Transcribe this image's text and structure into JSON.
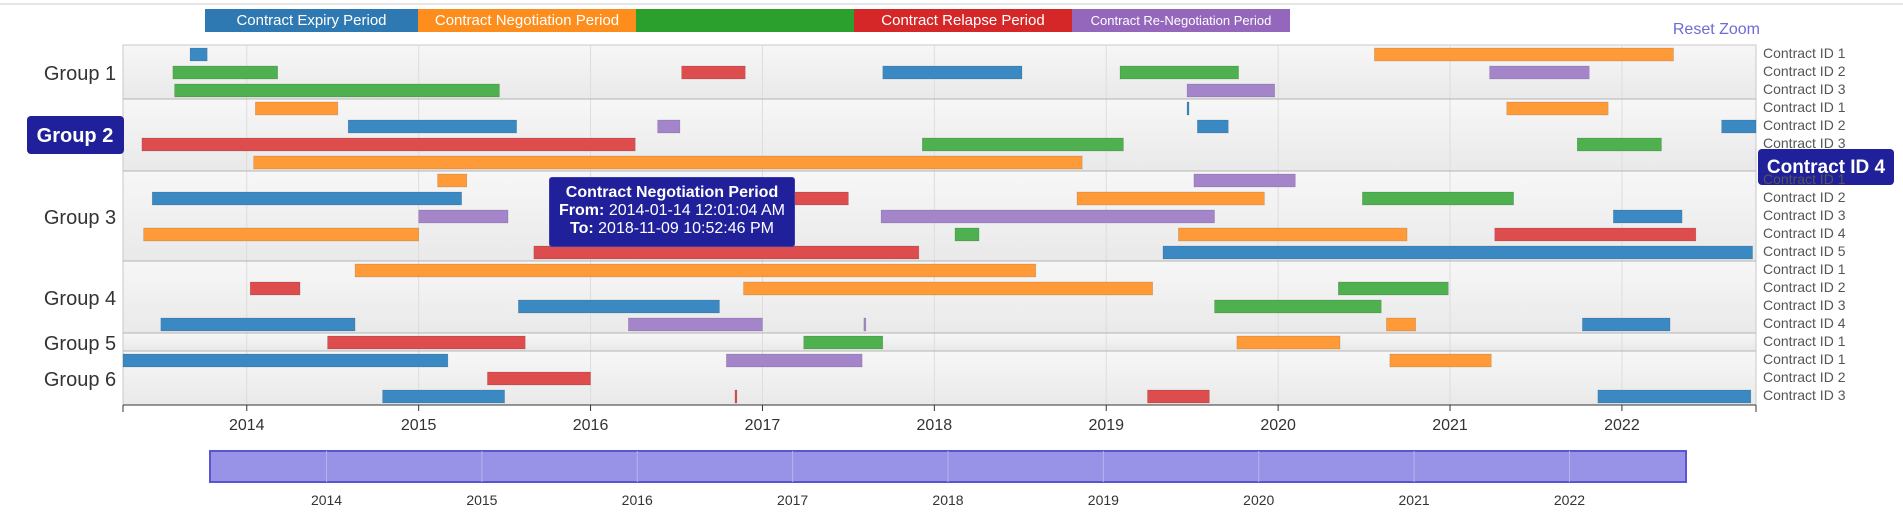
{
  "legend": [
    {
      "label": "Contract Expiry Period",
      "color": "#2f79b3"
    },
    {
      "label": "Contract Negotiation Period",
      "color": "#fd8d1c"
    },
    {
      "label": "",
      "color": "#2ca02c"
    },
    {
      "label": "Contract Relapse Period",
      "color": "#d62728"
    },
    {
      "label": "Contract Re-Negotiation Period",
      "color": "#9467bd"
    }
  ],
  "reset_zoom": "Reset Zoom",
  "tooltip": {
    "title": "Contract Negotiation Period",
    "from_label": "From:",
    "from": "2014-01-14 12:01:04 AM",
    "to_label": "To:",
    "to": "2018-11-09 10:52:46 PM"
  },
  "chart_data": {
    "type": "timeline",
    "x_range": [
      2013.28,
      2022.78
    ],
    "x_ticks": [
      "2014",
      "2015",
      "2016",
      "2017",
      "2018",
      "2019",
      "2020",
      "2021",
      "2022"
    ],
    "brush_range": [
      2013.25,
      2022.75
    ],
    "brush_ticks": [
      "2014",
      "2015",
      "2016",
      "2017",
      "2018",
      "2019",
      "2020",
      "2021",
      "2022"
    ],
    "highlighted_group": "Group 2",
    "highlighted_row": "Contract ID 4",
    "groups": [
      {
        "name": "Group 1",
        "rows": [
          {
            "label": "Contract ID 1",
            "bars": [
              [
                2013.67,
                2013.77,
                "expiry"
              ],
              [
                2020.56,
                2022.3,
                "negotiation"
              ]
            ]
          },
          {
            "label": "Contract ID 2",
            "bars": [
              [
                2013.57,
                2014.18,
                "green"
              ],
              [
                2016.53,
                2016.9,
                "relapse"
              ],
              [
                2017.7,
                2018.51,
                "expiry"
              ],
              [
                2019.08,
                2019.77,
                "green"
              ],
              [
                2021.23,
                2021.81,
                "renegotiation"
              ]
            ]
          },
          {
            "label": "Contract ID 3",
            "bars": [
              [
                2013.58,
                2015.47,
                "green"
              ],
              [
                2019.47,
                2019.98,
                "renegotiation"
              ]
            ]
          }
        ]
      },
      {
        "name": "Group 2",
        "rows": [
          {
            "label": "Contract ID 1",
            "bars": [
              [
                2014.05,
                2014.53,
                "negotiation"
              ],
              [
                2019.47,
                2019.48,
                "expiry"
              ],
              [
                2021.33,
                2021.92,
                "negotiation"
              ]
            ]
          },
          {
            "label": "Contract ID 2",
            "bars": [
              [
                2014.59,
                2015.57,
                "expiry"
              ],
              [
                2016.39,
                2016.52,
                "renegotiation"
              ],
              [
                2019.53,
                2019.71,
                "expiry"
              ],
              [
                2022.58,
                2022.78,
                "expiry"
              ]
            ]
          },
          {
            "label": "Contract ID 3",
            "bars": [
              [
                2013.39,
                2016.26,
                "relapse"
              ],
              [
                2017.93,
                2019.1,
                "green"
              ],
              [
                2021.74,
                2022.23,
                "green"
              ]
            ]
          },
          {
            "label": "Contract ID 4",
            "bars": [
              [
                2014.04,
                2018.86,
                "negotiation"
              ]
            ]
          }
        ]
      },
      {
        "name": "Group 3",
        "rows": [
          {
            "label": "Contract ID 1",
            "bars": [
              [
                2015.11,
                2015.28,
                "negotiation"
              ],
              [
                2019.51,
                2020.1,
                "renegotiation"
              ]
            ]
          },
          {
            "label": "Contract ID 2",
            "bars": [
              [
                2013.45,
                2015.25,
                "expiry"
              ],
              [
                2017.15,
                2017.5,
                "relapse"
              ],
              [
                2018.83,
                2019.92,
                "negotiation"
              ],
              [
                2020.49,
                2021.37,
                "green"
              ]
            ]
          },
          {
            "label": "Contract ID 3",
            "bars": [
              [
                2015.0,
                2015.52,
                "renegotiation"
              ],
              [
                2017.69,
                2019.63,
                "renegotiation"
              ],
              [
                2021.95,
                2022.35,
                "expiry"
              ]
            ]
          },
          {
            "label": "Contract ID 4",
            "bars": [
              [
                2013.4,
                2015.0,
                "negotiation"
              ],
              [
                2018.12,
                2018.26,
                "green"
              ],
              [
                2019.42,
                2020.75,
                "negotiation"
              ],
              [
                2021.26,
                2022.43,
                "relapse"
              ]
            ]
          },
          {
            "label": "Contract ID 5",
            "bars": [
              [
                2015.67,
                2017.91,
                "relapse"
              ],
              [
                2019.33,
                2022.76,
                "expiry"
              ]
            ]
          }
        ]
      },
      {
        "name": "Group 4",
        "rows": [
          {
            "label": "Contract ID 1",
            "bars": [
              [
                2014.63,
                2018.59,
                "negotiation"
              ]
            ]
          },
          {
            "label": "Contract ID 2",
            "bars": [
              [
                2014.02,
                2014.31,
                "relapse"
              ],
              [
                2016.89,
                2019.27,
                "negotiation"
              ],
              [
                2020.35,
                2020.99,
                "green"
              ]
            ]
          },
          {
            "label": "Contract ID 3",
            "bars": [
              [
                2015.58,
                2016.75,
                "expiry"
              ],
              [
                2019.63,
                2020.6,
                "green"
              ]
            ]
          },
          {
            "label": "Contract ID 4",
            "bars": [
              [
                2013.5,
                2014.63,
                "expiry"
              ],
              [
                2016.22,
                2017.0,
                "renegotiation"
              ],
              [
                2017.59,
                2017.6,
                "renegotiation"
              ],
              [
                2020.63,
                2020.8,
                "negotiation"
              ],
              [
                2021.77,
                2022.28,
                "expiry"
              ]
            ]
          }
        ]
      },
      {
        "name": "Group 5",
        "rows": [
          {
            "label": "Contract ID 1",
            "bars": [
              [
                2014.47,
                2015.62,
                "relapse"
              ],
              [
                2017.24,
                2017.7,
                "green"
              ],
              [
                2019.76,
                2020.36,
                "negotiation"
              ]
            ]
          }
        ]
      },
      {
        "name": "Group 6",
        "rows": [
          {
            "label": "Contract ID 1",
            "bars": [
              [
                2013.28,
                2015.17,
                "expiry"
              ],
              [
                2016.79,
                2017.58,
                "renegotiation"
              ],
              [
                2020.65,
                2021.24,
                "negotiation"
              ]
            ]
          },
          {
            "label": "Contract ID 2",
            "bars": [
              [
                2015.4,
                2016.0,
                "relapse"
              ]
            ]
          },
          {
            "label": "Contract ID 3",
            "bars": [
              [
                2014.79,
                2015.5,
                "expiry"
              ],
              [
                2016.84,
                2016.85,
                "relapse"
              ],
              [
                2019.24,
                2019.6,
                "relapse"
              ],
              [
                2021.86,
                2022.75,
                "expiry"
              ]
            ]
          }
        ]
      }
    ],
    "category_colors": {
      "expiry": "#3b89c3",
      "negotiation": "#fe9b38",
      "green": "#4eb04e",
      "relapse": "#dd4d4e",
      "renegotiation": "#a485ca"
    }
  }
}
